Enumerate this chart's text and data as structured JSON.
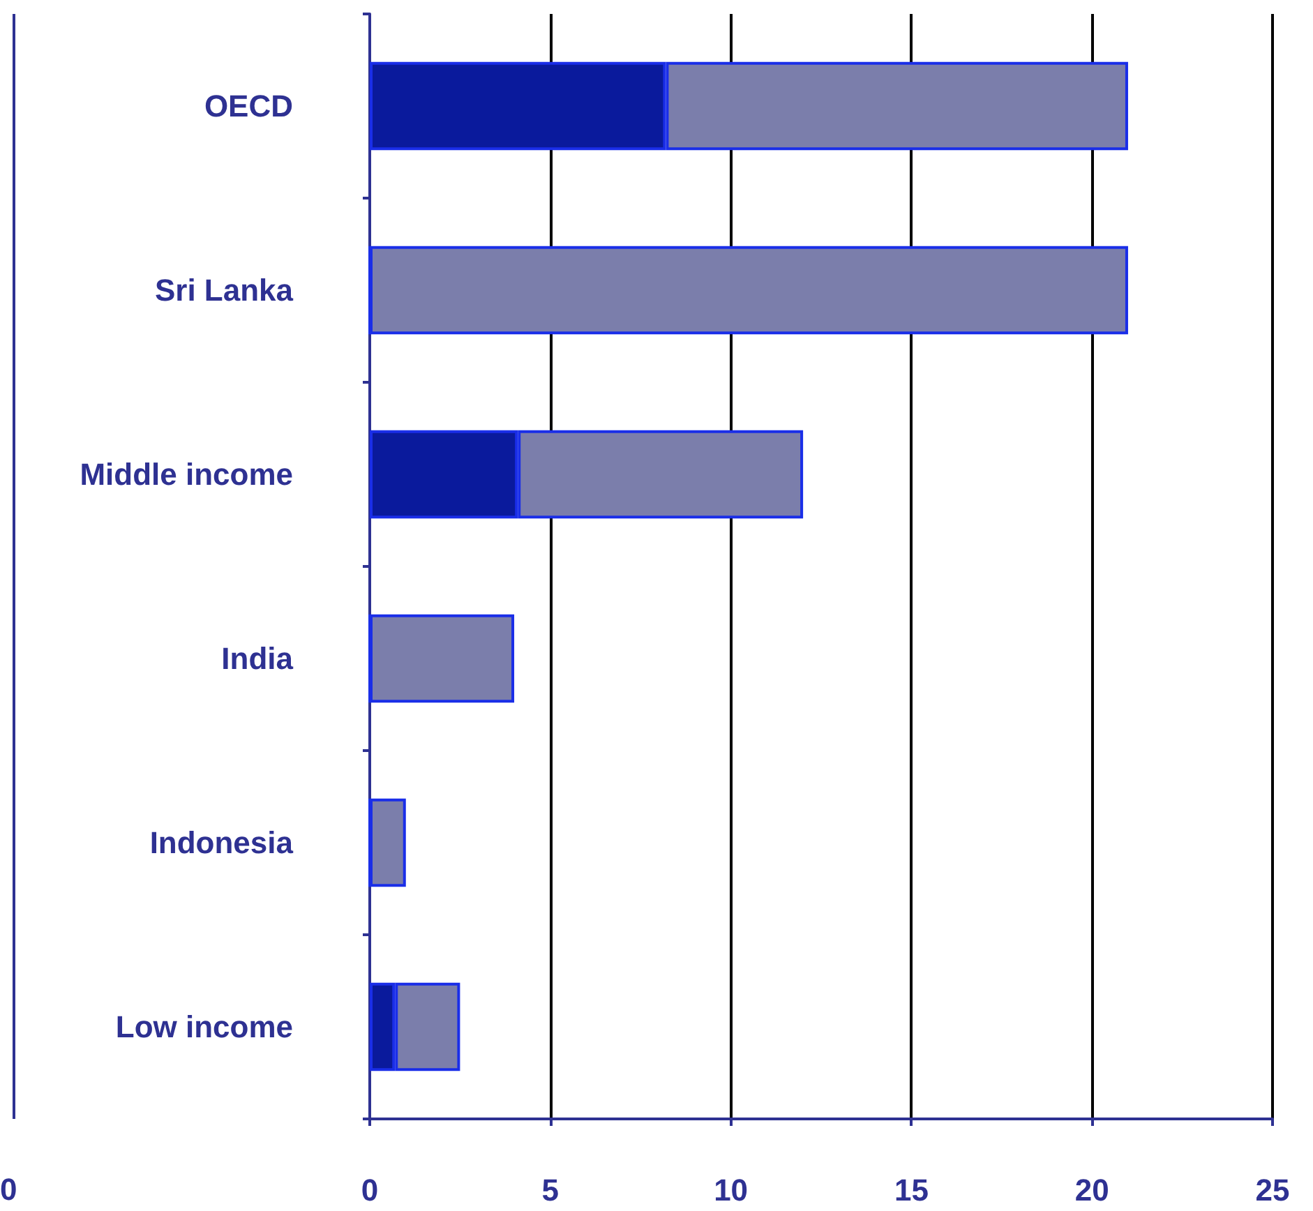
{
  "chart_data": {
    "type": "bar",
    "orientation": "horizontal",
    "stacked": true,
    "categories": [
      "OECD",
      "Sri Lanka",
      "Middle income",
      "India",
      "Indonesia",
      "Low income"
    ],
    "series": [
      {
        "color": "#0a1a9c",
        "values": [
          8.2,
          0,
          4.1,
          0,
          0,
          0.7
        ]
      },
      {
        "color": "#7b7eab",
        "values": [
          12.8,
          21.0,
          7.9,
          4.0,
          1.0,
          1.8
        ]
      }
    ],
    "xlim": [
      0,
      25
    ],
    "xticks": [
      0,
      5,
      10,
      15,
      20,
      25
    ],
    "grid": "x",
    "annotations": [
      "0"
    ]
  }
}
